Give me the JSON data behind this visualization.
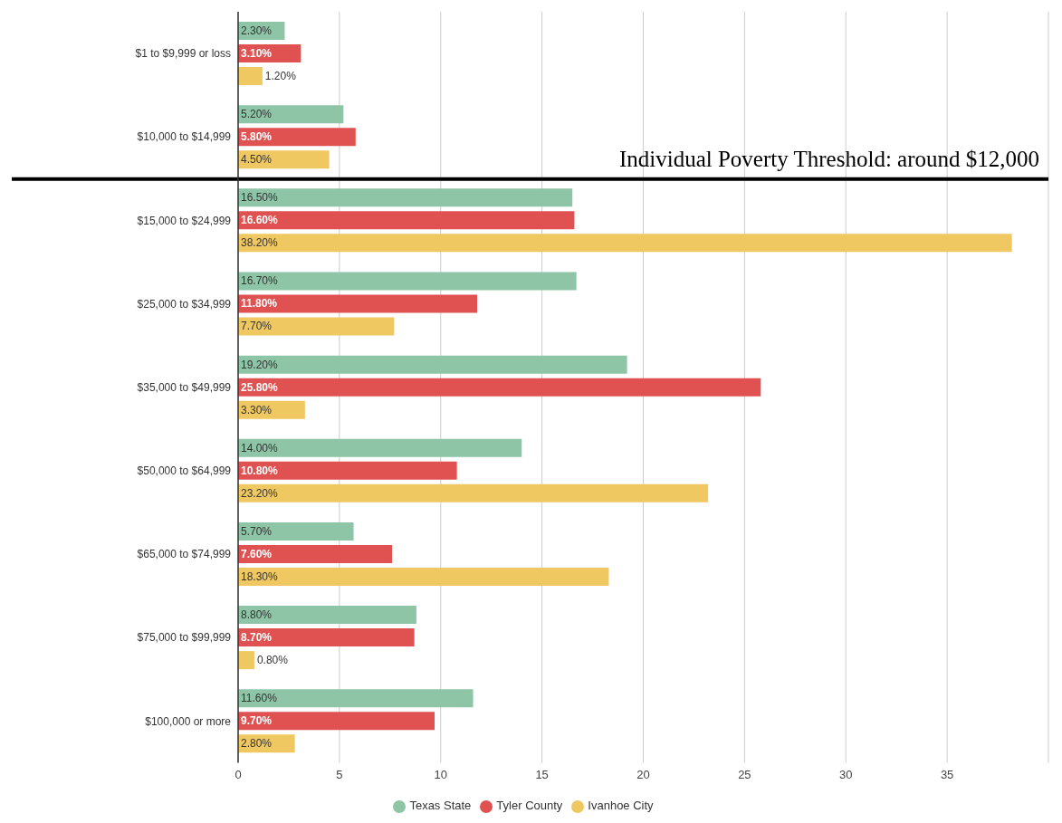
{
  "chart_data": {
    "type": "bar",
    "orientation": "horizontal",
    "categories": [
      "$1 to $9,999 or loss",
      "$10,000 to $14,999",
      "$15,000 to $24,999",
      "$25,000 to $34,999",
      "$35,000 to $49,999",
      "$50,000 to $64,999",
      "$65,000 to $74,999",
      "$75,000 to $99,999",
      "$100,000 or more"
    ],
    "series": [
      {
        "name": "Texas State",
        "color": "#8dc5a6",
        "values": [
          2.3,
          5.2,
          16.5,
          16.7,
          19.2,
          14.0,
          5.7,
          8.8,
          11.6
        ],
        "value_labels": [
          "2.30%",
          "5.20%",
          "16.50%",
          "16.70%",
          "19.20%",
          "14.00%",
          "5.70%",
          "8.80%",
          "11.60%"
        ]
      },
      {
        "name": "Tyler County",
        "color": "#e05252",
        "values": [
          3.1,
          5.8,
          16.6,
          11.8,
          25.8,
          10.8,
          7.6,
          8.7,
          9.7
        ],
        "value_labels": [
          "3.10%",
          "5.80%",
          "16.60%",
          "11.80%",
          "25.80%",
          "10.80%",
          "7.60%",
          "8.70%",
          "9.70%"
        ]
      },
      {
        "name": "Ivanhoe City",
        "color": "#f0c862",
        "values": [
          1.2,
          4.5,
          38.2,
          7.7,
          3.3,
          23.2,
          18.3,
          0.8,
          2.8
        ],
        "value_labels": [
          "1.20%",
          "4.50%",
          "38.20%",
          "7.70%",
          "3.30%",
          "23.20%",
          "18.30%",
          "0.80%",
          "2.80%"
        ]
      }
    ],
    "xlim": [
      0,
      40
    ],
    "xticks": [
      0,
      5,
      10,
      15,
      20,
      25,
      30,
      35
    ],
    "grid": "x",
    "legend": "bottom",
    "ref_lines": [
      {
        "axis": "y",
        "value": "$10,000 to $14,999",
        "label": "Individual Poverty Threshold: around $12,000",
        "color": "#000000"
      }
    ]
  }
}
